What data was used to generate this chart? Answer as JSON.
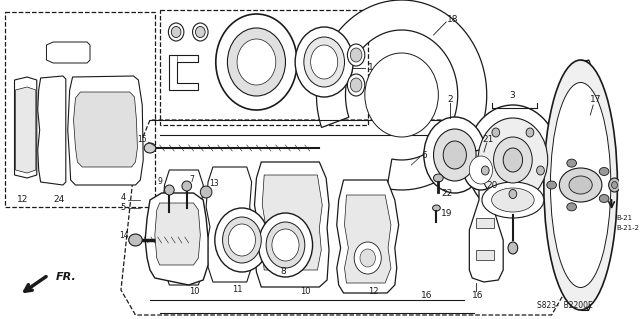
{
  "bg_color": "#ffffff",
  "line_color": "#1a1a1a",
  "fig_width": 6.4,
  "fig_height": 3.19,
  "dpi": 100,
  "footer_text": "S823-  B2200E",
  "fr_label": "FR.",
  "ref_labels": [
    "B-21",
    "B-21-2"
  ]
}
